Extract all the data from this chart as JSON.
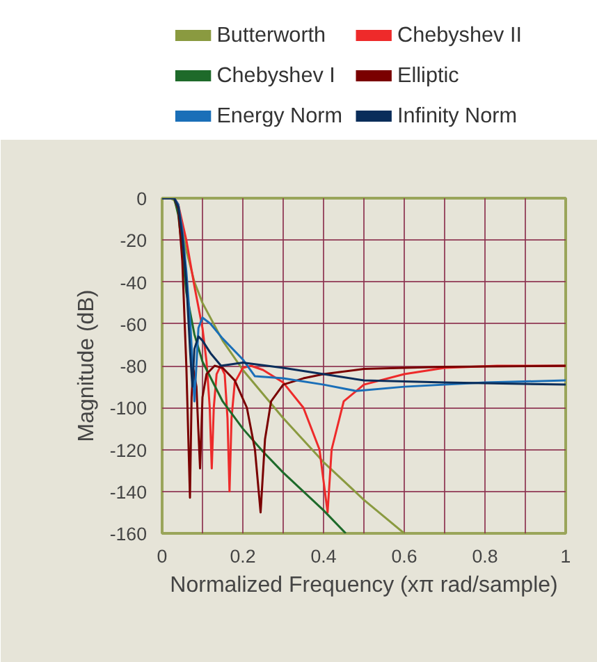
{
  "chart_data": {
    "type": "line",
    "xlabel": "Normalized Frequency (xπ rad/sample)",
    "ylabel": "Magnitude (dB)",
    "xlim": [
      0,
      1
    ],
    "ylim": [
      -160,
      0
    ],
    "xticks": [
      0,
      {
        "value": 0.1,
        "label": null
      },
      0.2,
      {
        "value": 0.3,
        "label": null
      },
      0.4,
      {
        "value": 0.5,
        "label": null
      },
      0.6,
      {
        "value": 0.7,
        "label": null
      },
      0.8,
      {
        "value": 0.9,
        "label": null
      },
      1
    ],
    "yticks": [
      0,
      -20,
      -40,
      -60,
      -80,
      -100,
      -120,
      -140,
      -160
    ],
    "grid": true,
    "legend": "top",
    "series": [
      {
        "name": "Butterworth",
        "color": "#8a9a40",
        "x": [
          0,
          0.02,
          0.03,
          0.04,
          0.05,
          0.06,
          0.08,
          0.1,
          0.15,
          0.2,
          0.3,
          0.4,
          0.5,
          0.6
        ],
        "values": [
          0,
          0,
          -1,
          -6,
          -15,
          -25,
          -40,
          -50,
          -68,
          -82,
          -105,
          -126,
          -144,
          -160
        ]
      },
      {
        "name": "Chebyshev II",
        "color": "#ee2a2a",
        "x": [
          0,
          0.03,
          0.04,
          0.06,
          0.08,
          0.1,
          0.11,
          0.118,
          0.123,
          0.128,
          0.135,
          0.145,
          0.155,
          0.162,
          0.167,
          0.172,
          0.18,
          0.2,
          0.22,
          0.25,
          0.3,
          0.35,
          0.39,
          0.41,
          0.42,
          0.45,
          0.5,
          0.6,
          0.7,
          0.83,
          1
        ],
        "values": [
          0,
          0,
          -3,
          -20,
          -42,
          -62,
          -78,
          -100,
          -129,
          -100,
          -84,
          -80,
          -84,
          -105,
          -140,
          -105,
          -88,
          -81,
          -80,
          -82,
          -88,
          -100,
          -120,
          -150,
          -120,
          -97,
          -89,
          -84,
          -81,
          -80,
          -80
        ]
      },
      {
        "name": "Chebyshev I",
        "color": "#1e6a2a",
        "x": [
          0,
          0.03,
          0.04,
          0.05,
          0.06,
          0.08,
          0.1,
          0.15,
          0.2,
          0.25,
          0.3,
          0.4,
          0.455
        ],
        "values": [
          0,
          0,
          -8,
          -25,
          -45,
          -65,
          -78,
          -97,
          -110,
          -121,
          -131,
          -149,
          -160
        ]
      },
      {
        "name": "Elliptic",
        "color": "#7a0000",
        "x": [
          0,
          0.03,
          0.04,
          0.05,
          0.06,
          0.069,
          0.073,
          0.077,
          0.085,
          0.094,
          0.1,
          0.11,
          0.13,
          0.15,
          0.18,
          0.21,
          0.23,
          0.244,
          0.255,
          0.27,
          0.3,
          0.35,
          0.4,
          0.5,
          0.7,
          1
        ],
        "values": [
          0,
          0,
          -5,
          -30,
          -80,
          -143,
          -95,
          -81,
          -90,
          -129,
          -95,
          -84,
          -80,
          -81,
          -87,
          -100,
          -120,
          -150,
          -115,
          -97,
          -89,
          -86,
          -84,
          -81.5,
          -80.5,
          -80
        ]
      },
      {
        "name": "Energy Norm",
        "color": "#1a6fb8",
        "x": [
          0,
          0.03,
          0.04,
          0.05,
          0.06,
          0.07,
          0.08,
          0.09,
          0.1,
          0.12,
          0.15,
          0.2,
          0.23,
          0.3,
          0.4,
          0.48,
          0.6,
          0.8,
          1
        ],
        "values": [
          0,
          0,
          -3,
          -15,
          -35,
          -60,
          -97,
          -62,
          -57,
          -60,
          -67,
          -77,
          -85,
          -86,
          -89,
          -92,
          -90,
          -88,
          -87
        ]
      },
      {
        "name": "Infinity Norm",
        "color": "#0a2d5a",
        "x": [
          0,
          0.03,
          0.04,
          0.05,
          0.06,
          0.07,
          0.075,
          0.08,
          0.09,
          0.1,
          0.12,
          0.146,
          0.2,
          0.3,
          0.4,
          0.5,
          0.7,
          1
        ],
        "values": [
          0,
          0,
          -4,
          -18,
          -40,
          -75,
          -90,
          -72,
          -66,
          -68,
          -74,
          -80,
          -78.5,
          -81,
          -84,
          -87,
          -88,
          -89
        ]
      }
    ]
  }
}
